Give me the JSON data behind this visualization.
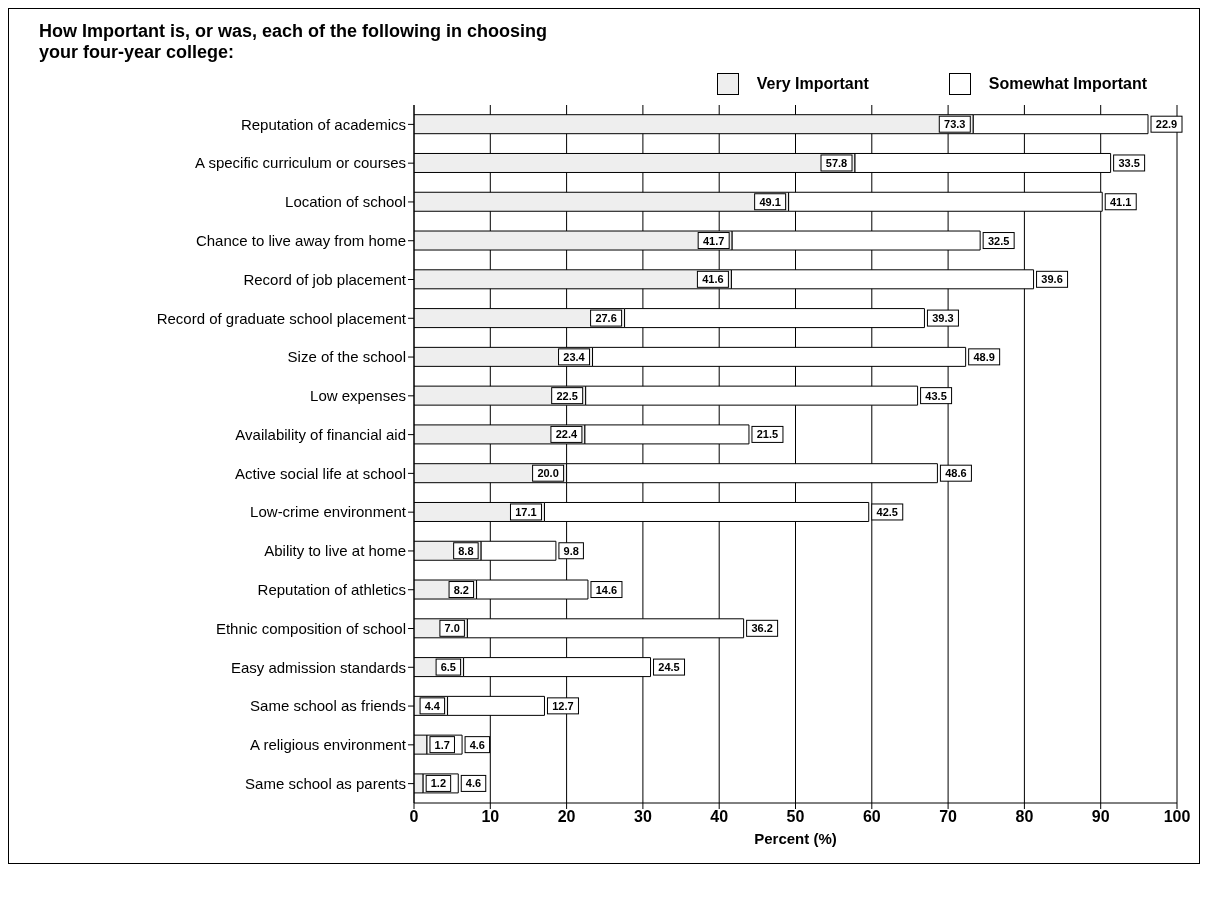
{
  "chart_data": {
    "type": "bar",
    "orientation": "horizontal",
    "stacked": true,
    "title": "How Important is, or was, each of the following in choosing your four-year college:",
    "xlabel": "Percent (%)",
    "categories": [
      "Reputation of academics",
      "A specific curriculum or courses",
      "Location of school",
      "Chance to live away from home",
      "Record of job placement",
      "Record of graduate school placement",
      "Size of the school",
      "Low expenses",
      "Availability of financial aid",
      "Active social life at school",
      "Low-crime environment",
      "Ability to live at home",
      "Reputation of athletics",
      "Ethnic composition of school",
      "Easy admission standards",
      "Same school as friends",
      "A religious environment",
      "Same school as parents"
    ],
    "series": [
      {
        "name": "Very Important",
        "color": "#eeeeee",
        "values": [
          73.3,
          57.8,
          49.1,
          41.7,
          41.6,
          27.6,
          23.4,
          22.5,
          22.4,
          20.0,
          17.1,
          8.8,
          8.2,
          7.0,
          6.5,
          4.4,
          1.7,
          1.2
        ],
        "value_labels": [
          "73.3",
          "57.8",
          "49.1",
          "41.7",
          "41.6",
          "27.6",
          "23.4",
          "22.5",
          "22.4",
          "20.0",
          "17.1",
          "8.8",
          "8.2",
          "7.0",
          "6.5",
          "4.4",
          "1.7",
          "1.2"
        ]
      },
      {
        "name": "Somewhat Important",
        "color": "#ffffff",
        "values": [
          22.9,
          33.5,
          41.1,
          32.5,
          39.6,
          39.3,
          48.9,
          43.5,
          21.5,
          48.6,
          42.5,
          9.8,
          14.6,
          36.2,
          24.5,
          12.7,
          4.6,
          4.6
        ],
        "value_labels": [
          "22.9",
          "33.5",
          "41.1",
          "32.5",
          "39.6",
          "39.3",
          "48.9",
          "43.5",
          "21.5",
          "48.6",
          "42.5",
          "9.8",
          "14.6",
          "36.2",
          "24.5",
          "12.7",
          "4.6",
          "4.6"
        ]
      }
    ],
    "xlim": [
      0,
      100
    ],
    "xticks": [
      0,
      10,
      20,
      30,
      40,
      50,
      60,
      70,
      80,
      90,
      100
    ],
    "grid": "x",
    "legend": "top right"
  }
}
